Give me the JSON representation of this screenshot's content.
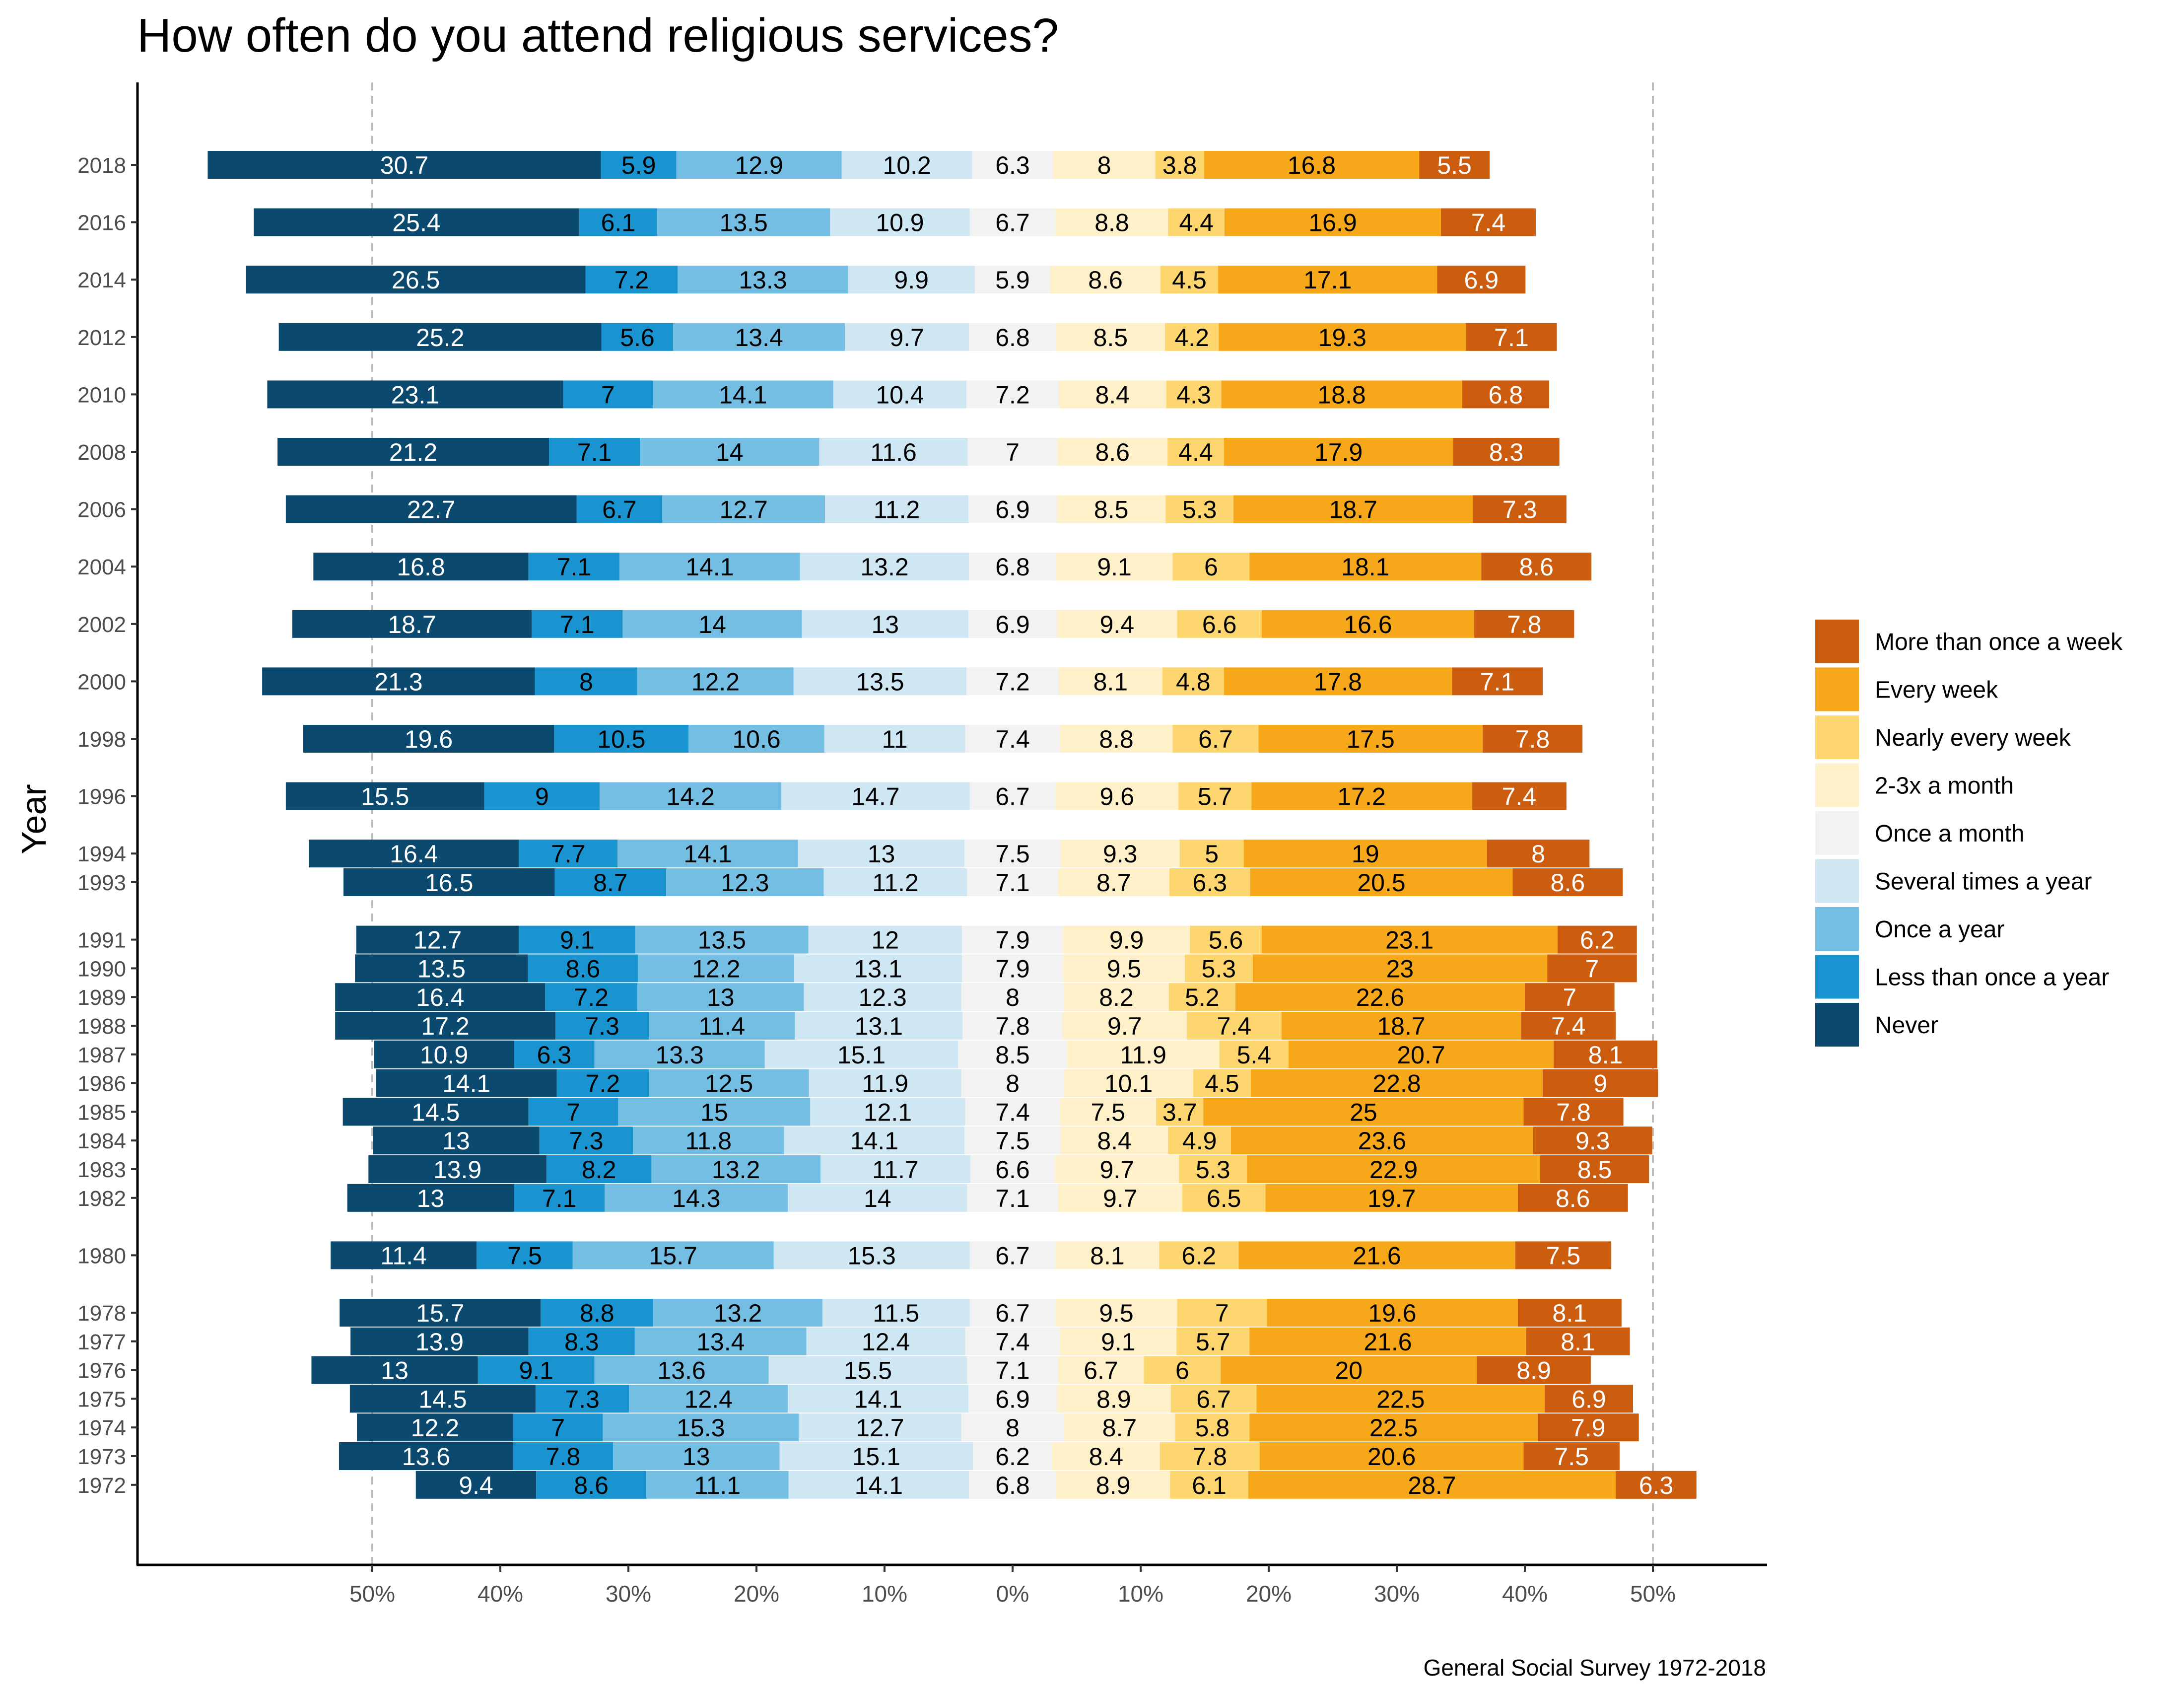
{
  "chart_data": {
    "type": "bar",
    "orientation": "horizontal",
    "stacking": "diverging",
    "title": "How often do you attend religious services?",
    "ylabel": "Year",
    "xlabel": "",
    "caption": "General Social Survey 1972-2018",
    "x_ticks": [
      "50%",
      "40%",
      "30%",
      "20%",
      "10%",
      "0%",
      "10%",
      "20%",
      "30%",
      "40%",
      "50%"
    ],
    "x_tick_values": [
      -50,
      -40,
      -30,
      -20,
      -10,
      0,
      10,
      20,
      30,
      40,
      50
    ],
    "xlim": [
      -68.5,
      59
    ],
    "ylim": [
      1971,
      2019.5
    ],
    "grid": "dashed reference lines at -50% and 50%",
    "legend_position": "right",
    "series": [
      {
        "name": "Never",
        "color": "#0b4a6e"
      },
      {
        "name": "Less than once a year",
        "color": "#1a94d0"
      },
      {
        "name": "Once a year",
        "color": "#74bde3"
      },
      {
        "name": "Several times a year",
        "color": "#cfe6f3"
      },
      {
        "name": "Once a month",
        "color": "#f2f2f2"
      },
      {
        "name": "2-3x a month",
        "color": "#fef0c8"
      },
      {
        "name": "Nearly every week",
        "color": "#fdd670"
      },
      {
        "name": "Every week",
        "color": "#f6a71a"
      },
      {
        "name": "More than once a week",
        "color": "#cc5d0e"
      }
    ],
    "rows": [
      {
        "year": "2018",
        "values": [
          30.7,
          5.9,
          12.9,
          10.2,
          6.3,
          8,
          3.8,
          16.8,
          5.5
        ]
      },
      {
        "year": "2016",
        "values": [
          25.4,
          6.1,
          13.5,
          10.9,
          6.7,
          8.8,
          4.4,
          16.9,
          7.4
        ]
      },
      {
        "year": "2014",
        "values": [
          26.5,
          7.2,
          13.3,
          9.9,
          5.9,
          8.6,
          4.5,
          17.1,
          6.9
        ]
      },
      {
        "year": "2012",
        "values": [
          25.2,
          5.6,
          13.4,
          9.7,
          6.8,
          8.5,
          4.2,
          19.3,
          7.1
        ]
      },
      {
        "year": "2010",
        "values": [
          23.1,
          7,
          14.1,
          10.4,
          7.2,
          8.4,
          4.3,
          18.8,
          6.8
        ]
      },
      {
        "year": "2008",
        "values": [
          21.2,
          7.1,
          14,
          11.6,
          7,
          8.6,
          4.4,
          17.9,
          8.3
        ]
      },
      {
        "year": "2006",
        "values": [
          22.7,
          6.7,
          12.7,
          11.2,
          6.9,
          8.5,
          5.3,
          18.7,
          7.3
        ]
      },
      {
        "year": "2004",
        "values": [
          16.8,
          7.1,
          14.1,
          13.2,
          6.8,
          9.1,
          6,
          18.1,
          8.6
        ]
      },
      {
        "year": "2002",
        "values": [
          18.7,
          7.1,
          14,
          13,
          6.9,
          9.4,
          6.6,
          16.6,
          7.8
        ]
      },
      {
        "year": "2000",
        "values": [
          21.3,
          8,
          12.2,
          13.5,
          7.2,
          8.1,
          4.8,
          17.8,
          7.1
        ]
      },
      {
        "year": "1998",
        "values": [
          19.6,
          10.5,
          10.6,
          11,
          7.4,
          8.8,
          6.7,
          17.5,
          7.8
        ]
      },
      {
        "year": "1996",
        "values": [
          15.5,
          9,
          14.2,
          14.7,
          6.7,
          9.6,
          5.7,
          17.2,
          7.4
        ]
      },
      {
        "year": "1994",
        "values": [
          16.4,
          7.7,
          14.1,
          13,
          7.5,
          9.3,
          5,
          19,
          8
        ]
      },
      {
        "year": "1993",
        "values": [
          16.5,
          8.7,
          12.3,
          11.2,
          7.1,
          8.7,
          6.3,
          20.5,
          8.6
        ]
      },
      {
        "year": "1991",
        "values": [
          12.7,
          9.1,
          13.5,
          12,
          7.9,
          9.9,
          5.6,
          23.1,
          6.2
        ]
      },
      {
        "year": "1990",
        "values": [
          13.5,
          8.6,
          12.2,
          13.1,
          7.9,
          9.5,
          5.3,
          23,
          7
        ]
      },
      {
        "year": "1989",
        "values": [
          16.4,
          7.2,
          13,
          12.3,
          8,
          8.2,
          5.2,
          22.6,
          7
        ]
      },
      {
        "year": "1988",
        "values": [
          17.2,
          7.3,
          11.4,
          13.1,
          7.8,
          9.7,
          7.4,
          18.7,
          7.4
        ]
      },
      {
        "year": "1987",
        "values": [
          10.9,
          6.3,
          13.3,
          15.1,
          8.5,
          11.9,
          5.4,
          20.7,
          8.1
        ]
      },
      {
        "year": "1986",
        "values": [
          14.1,
          7.2,
          12.5,
          11.9,
          8,
          10.1,
          4.5,
          22.8,
          9
        ]
      },
      {
        "year": "1985",
        "values": [
          14.5,
          7,
          15,
          12.1,
          7.4,
          7.5,
          3.7,
          25,
          7.8
        ]
      },
      {
        "year": "1984",
        "values": [
          13,
          7.3,
          11.8,
          14.1,
          7.5,
          8.4,
          4.9,
          23.6,
          9.3
        ]
      },
      {
        "year": "1983",
        "values": [
          13.9,
          8.2,
          13.2,
          11.7,
          6.6,
          9.7,
          5.3,
          22.9,
          8.5
        ]
      },
      {
        "year": "1982",
        "values": [
          13,
          7.1,
          14.3,
          14,
          7.1,
          9.7,
          6.5,
          19.7,
          8.6
        ]
      },
      {
        "year": "1980",
        "values": [
          11.4,
          7.5,
          15.7,
          15.3,
          6.7,
          8.1,
          6.2,
          21.6,
          7.5
        ]
      },
      {
        "year": "1978",
        "values": [
          15.7,
          8.8,
          13.2,
          11.5,
          6.7,
          9.5,
          7,
          19.6,
          8.1
        ]
      },
      {
        "year": "1977",
        "values": [
          13.9,
          8.3,
          13.4,
          12.4,
          7.4,
          9.1,
          5.7,
          21.6,
          8.1
        ]
      },
      {
        "year": "1976",
        "values": [
          13,
          9.1,
          13.6,
          15.5,
          7.1,
          6.7,
          6,
          20,
          8.9
        ]
      },
      {
        "year": "1975",
        "values": [
          14.5,
          7.3,
          12.4,
          14.1,
          6.9,
          8.9,
          6.7,
          22.5,
          6.9
        ]
      },
      {
        "year": "1974",
        "values": [
          12.2,
          7,
          15.3,
          12.7,
          8,
          8.7,
          5.8,
          22.5,
          7.9
        ]
      },
      {
        "year": "1973",
        "values": [
          13.6,
          7.8,
          13,
          15.1,
          6.2,
          8.4,
          7.8,
          20.6,
          7.5
        ]
      },
      {
        "year": "1972",
        "values": [
          9.4,
          8.6,
          11.1,
          14.1,
          6.8,
          8.9,
          6.1,
          28.7,
          6.3
        ]
      }
    ]
  }
}
